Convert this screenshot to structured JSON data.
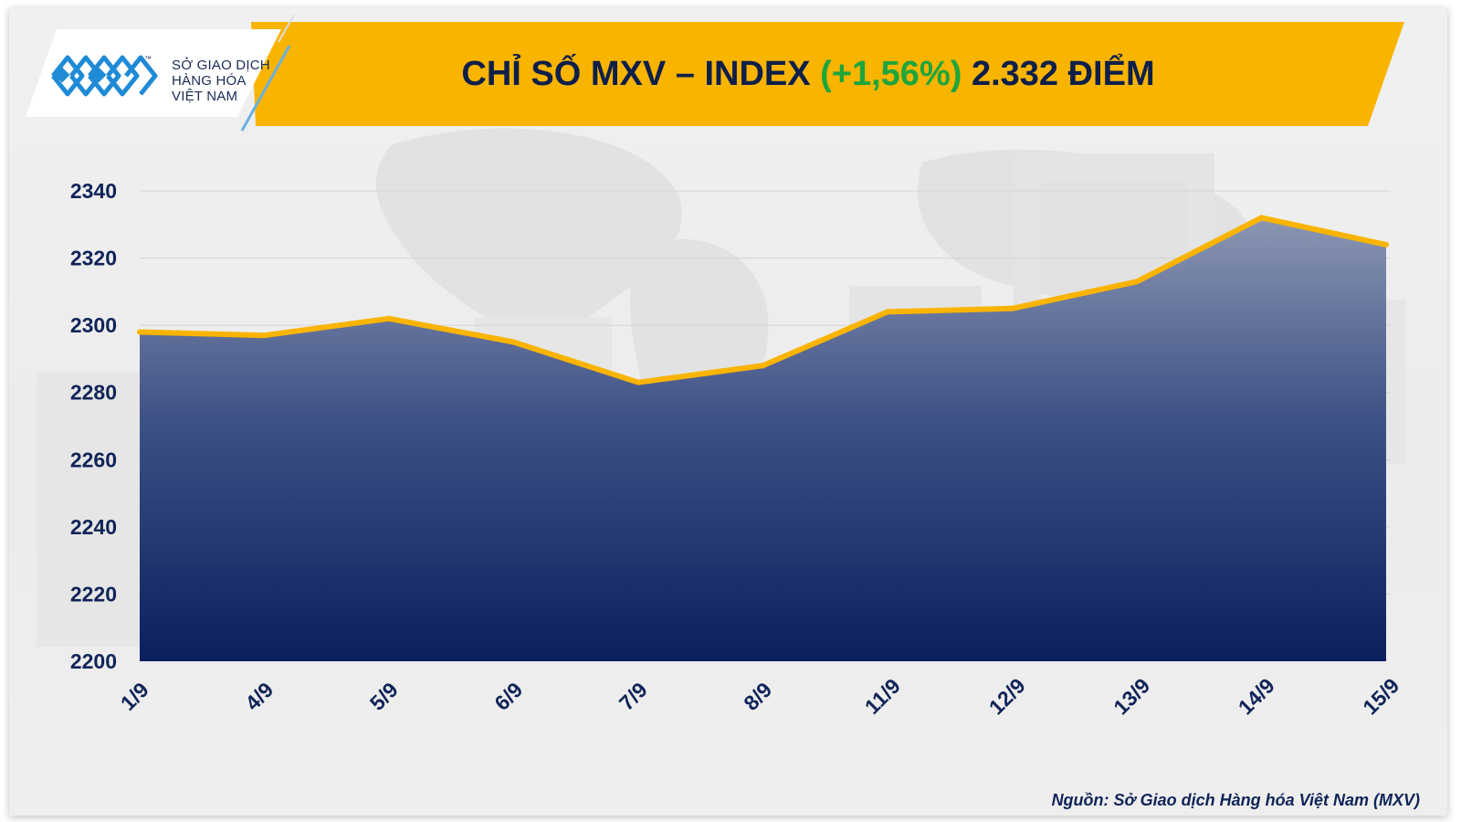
{
  "header": {
    "logo_line1": "SỞ GIAO DỊCH",
    "logo_line2": "HÀNG HÓA",
    "logo_line3": "VIỆT NAM",
    "logo_tm": "™",
    "title_prefix": "CHỈ SỐ MXV – INDEX ",
    "title_change": "(+1,56%)",
    "title_suffix": " 2.332 ĐIỂM"
  },
  "colors": {
    "banner": "#f9b400",
    "line": "#f9b400",
    "area_top": "#8a96b3",
    "area_bottom": "#0a1f5e",
    "change_text": "#1ea53c",
    "axis_text": "#102458"
  },
  "chart_data": {
    "type": "area",
    "categories": [
      "1/9",
      "4/9",
      "5/9",
      "6/9",
      "7/9",
      "8/9",
      "11/9",
      "12/9",
      "13/9",
      "14/9",
      "15/9"
    ],
    "values": [
      2298,
      2297,
      2302,
      2295,
      2283,
      2288,
      2304,
      2305,
      2313,
      2332,
      2324
    ],
    "ylim": [
      2200,
      2340
    ],
    "yticks": [
      2200,
      2220,
      2240,
      2260,
      2280,
      2300,
      2320,
      2340
    ],
    "grid": true,
    "title": "CHỈ SỐ MXV – INDEX (+1,56%) 2.332 ĐIỂM"
  },
  "footer": {
    "source": "Nguồn: Sở Giao dịch Hàng hóa Việt Nam (MXV)"
  }
}
